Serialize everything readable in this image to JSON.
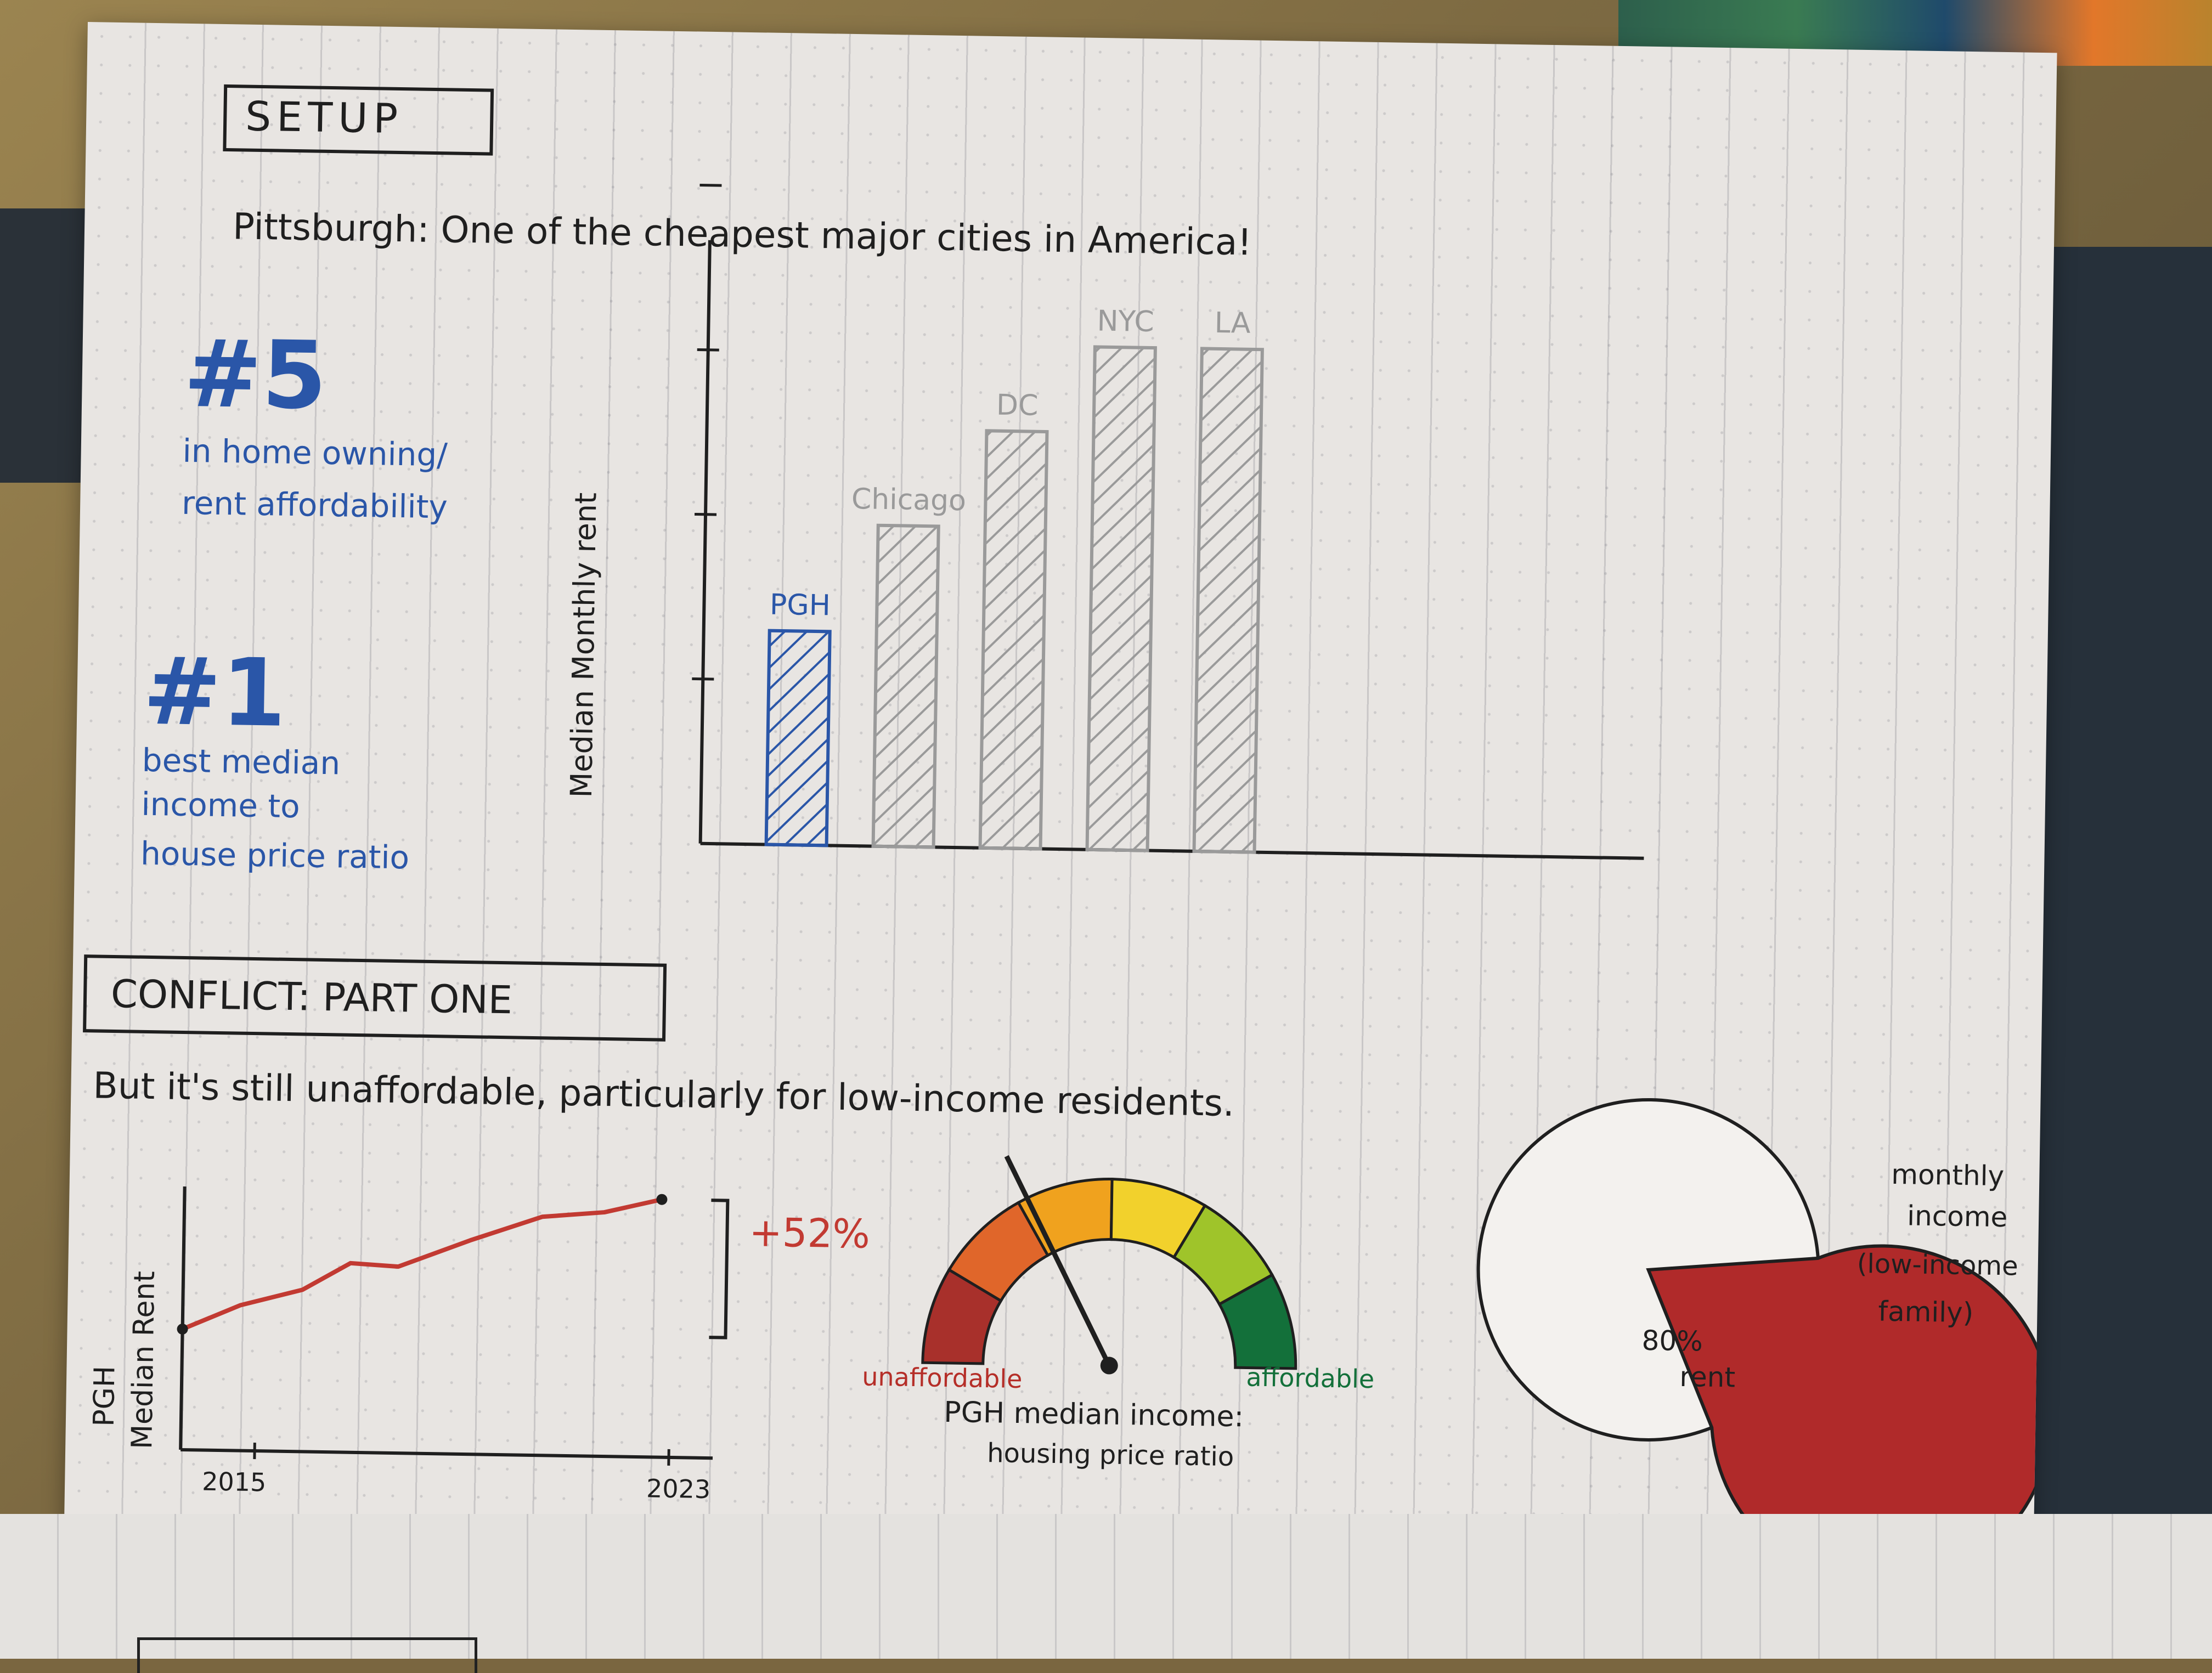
{
  "setup": {
    "heading": "SETUP",
    "tagline": "Pittsburgh: One of the cheapest major cities in America!"
  },
  "stats": [
    {
      "rank": "#5",
      "caption_line1": "in home owning/",
      "caption_line2": "rent affordability"
    },
    {
      "rank": "#1",
      "caption_line1": "best median",
      "caption_line2": "income to",
      "caption_line3": "house price ratio"
    }
  ],
  "bar_chart": {
    "ylabel": "Median Monthly rent",
    "bars": [
      {
        "label": "PGH",
        "height": 2.0,
        "color": "#2a56a8"
      },
      {
        "label": "Chicago",
        "height": 3.0,
        "color": "#9a9a9a"
      },
      {
        "label": "DC",
        "height": 3.9,
        "color": "#9a9a9a"
      },
      {
        "label": "NYC",
        "height": 4.7,
        "color": "#9a9a9a"
      },
      {
        "label": "LA",
        "height": 4.7,
        "color": "#9a9a9a"
      }
    ]
  },
  "conflict": {
    "heading": "CONFLICT: PART ONE",
    "tagline": "But it's still unaffordable, particularly for low-income residents."
  },
  "line_chart": {
    "ylabel_line1": "PGH",
    "ylabel_line2": "Median Rent",
    "x_ticks": [
      "2015",
      "2023"
    ],
    "change_label": "+52%",
    "points": [
      [
        0,
        0.0
      ],
      [
        0.12,
        0.18
      ],
      [
        0.25,
        0.3
      ],
      [
        0.35,
        0.5
      ],
      [
        0.45,
        0.48
      ],
      [
        0.6,
        0.68
      ],
      [
        0.75,
        0.86
      ],
      [
        0.88,
        0.9
      ],
      [
        1.0,
        1.0
      ]
    ],
    "color": "#c23a32"
  },
  "gauge": {
    "low_label": "unaffordable",
    "high_label": "affordable",
    "caption_line1": "PGH median income:",
    "caption_line2": "housing price ratio",
    "needle_fraction": 0.35,
    "segments": [
      "#a8302b",
      "#e0662a",
      "#f0a21e",
      "#f2d12c",
      "#9fc42a",
      "#13703a"
    ]
  },
  "pie": {
    "label": "80% rent",
    "label_line1": "80%",
    "label_line2": "rent",
    "outside_line1": "monthly",
    "outside_line2": "income",
    "outside_line3": "(low-income",
    "outside_line4": "family)",
    "rent_fraction": 0.8,
    "rent_color": "#b02a2a"
  }
}
